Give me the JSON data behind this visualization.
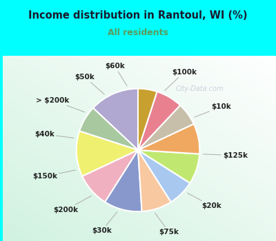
{
  "title": "Income distribution in Rantoul, WI (%)",
  "subtitle": "All residents",
  "title_color": "#1a1a2e",
  "subtitle_color": "#5a9a5a",
  "bg_cyan": "#00ffff",
  "bg_chart": "#d8f0e0",
  "watermark": "City-Data.com",
  "labels": [
    "$100k",
    "$10k",
    "$125k",
    "$20k",
    "$75k",
    "$30k",
    "$200k",
    "$150k",
    "$40k",
    "> $200k",
    "$50k",
    "$60k"
  ],
  "values": [
    13,
    7,
    12,
    9,
    10,
    8,
    7,
    8,
    8,
    6,
    7,
    5
  ],
  "colors": [
    "#b0a8d0",
    "#a8c8a0",
    "#f0f070",
    "#f0b0c0",
    "#8898cc",
    "#f8c8a0",
    "#a8c8f0",
    "#c0e870",
    "#f0a860",
    "#c8bfaa",
    "#e88090",
    "#c8a030"
  ],
  "label_fontsize": 7.5,
  "startangle": 90
}
